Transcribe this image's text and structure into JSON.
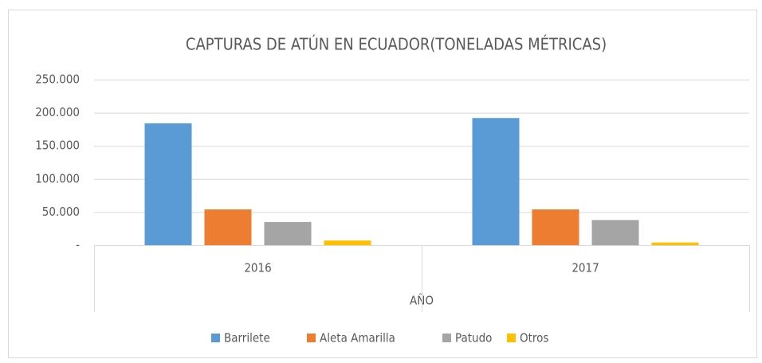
{
  "chart_data": {
    "type": "bar",
    "title": "CAPTURAS DE ATÚN EN ECUADOR(TONELADAS MÉTRICAS)",
    "x_label": "AÑO",
    "categories": [
      "2016",
      "2017"
    ],
    "series": [
      {
        "name": "Barrilete",
        "color": "#5b9bd5",
        "values": [
          184000,
          192000
        ]
      },
      {
        "name": "Aleta Amarilla",
        "color": "#ed7d31",
        "values": [
          54000,
          54000
        ]
      },
      {
        "name": "Patudo",
        "color": "#a5a5a5",
        "values": [
          35000,
          38000
        ]
      },
      {
        "name": "Otros",
        "color": "#ffc000",
        "values": [
          7000,
          4000
        ]
      }
    ],
    "ylim": [
      0,
      250000
    ],
    "yticks": [
      {
        "value": 0,
        "label": "-"
      },
      {
        "value": 50000,
        "label": "50.000"
      },
      {
        "value": 100000,
        "label": "100.000"
      },
      {
        "value": 150000,
        "label": "150.000"
      },
      {
        "value": 200000,
        "label": "200.000"
      },
      {
        "value": 250000,
        "label": "250.000"
      }
    ],
    "grid": true,
    "legend": "bottom"
  }
}
